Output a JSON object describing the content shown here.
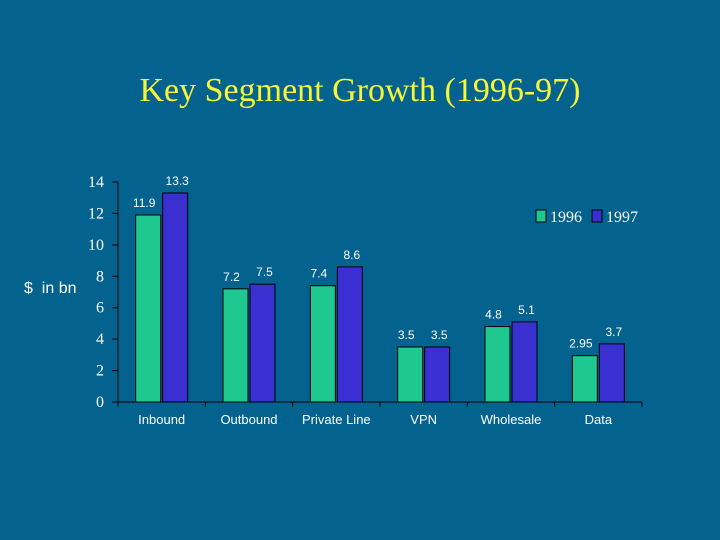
{
  "chart_data": {
    "type": "bar",
    "title": "Key Segment Growth (1996-97)",
    "ylabel": "$  in bn",
    "xlabel": "",
    "ylim": [
      0,
      14
    ],
    "yticks": [
      "0",
      "2",
      "4",
      "6",
      "8",
      "10",
      "12",
      "14"
    ],
    "categories": [
      "Inbound",
      "Outbound",
      "Private Line",
      "VPN",
      "Wholesale",
      "Data"
    ],
    "series": [
      {
        "name": "1996",
        "color": "#1fc88e",
        "values": [
          11.9,
          7.2,
          7.4,
          3.5,
          4.8,
          2.95
        ],
        "labels": [
          "11.9",
          "7.2",
          "7.4",
          "3.5",
          "4.8",
          "2.95"
        ]
      },
      {
        "name": "1997",
        "color": "#3a2fd0",
        "values": [
          13.3,
          7.5,
          8.6,
          3.5,
          5.1,
          3.7
        ],
        "labels": [
          "13.3",
          "7.5",
          "8.6",
          "3.5",
          "5.1",
          "3.7"
        ]
      }
    ],
    "legend": "top-right",
    "grid": false
  }
}
